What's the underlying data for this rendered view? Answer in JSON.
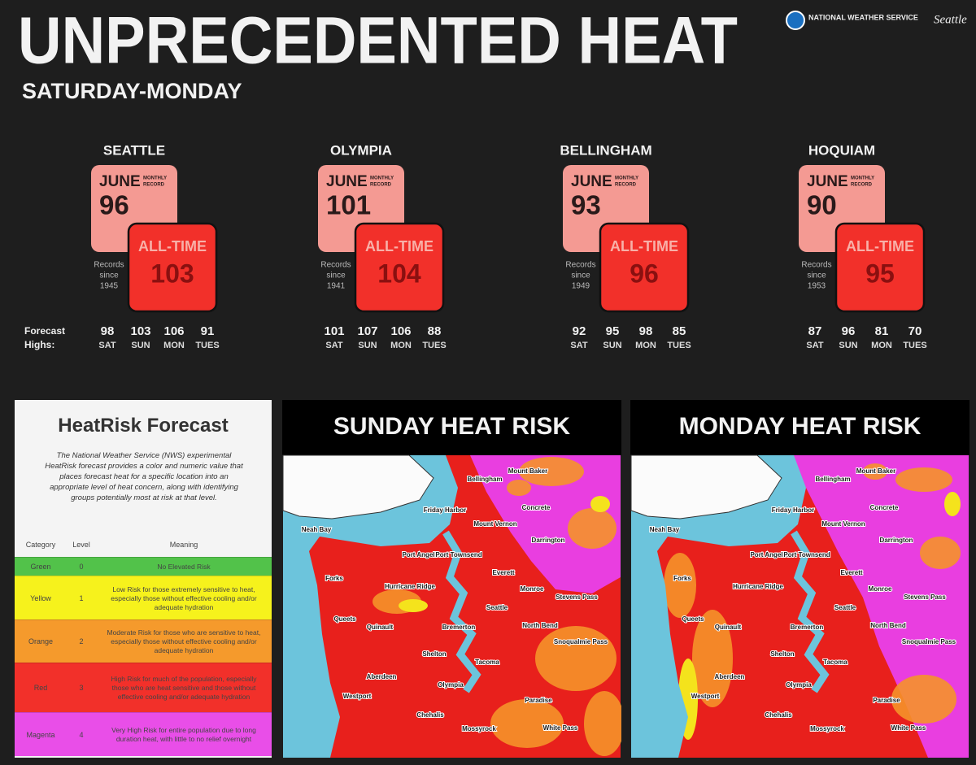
{
  "header": {
    "title": "UNPRECEDENTED HEAT",
    "subtitle": "SATURDAY-MONDAY",
    "agency": "NATIONAL WEATHER SERVICE",
    "office": "Seattle"
  },
  "records_label": [
    "Records",
    "since"
  ],
  "forecast_label": [
    "Forecast",
    "Highs:"
  ],
  "days": [
    "SAT",
    "SUN",
    "MON",
    "TUES"
  ],
  "month": "JUNE",
  "monthly_label": [
    "MONTHLY",
    "RECORD"
  ],
  "alltime_label": "ALL-TIME",
  "cities": [
    {
      "name": "SEATTLE",
      "monthly": 96,
      "alltime": 103,
      "since": 1945,
      "forecast": [
        98,
        103,
        106,
        91
      ]
    },
    {
      "name": "OLYMPIA",
      "monthly": 101,
      "alltime": 104,
      "since": 1941,
      "forecast": [
        101,
        107,
        106,
        88
      ]
    },
    {
      "name": "BELLINGHAM",
      "monthly": 93,
      "alltime": 96,
      "since": 1949,
      "forecast": [
        92,
        95,
        98,
        85
      ]
    },
    {
      "name": "HOQUIAM",
      "monthly": 90,
      "alltime": 95,
      "since": 1953,
      "forecast": [
        87,
        96,
        81,
        70
      ]
    }
  ],
  "heatrisk": {
    "title": "HeatRisk Forecast",
    "description": "The National Weather Service (NWS) experimental HeatRisk forecast provides a color and numeric value that places forecast heat for a specific location into an appropriate level of heat concern, along with identifying groups potentially most at risk at that level.",
    "columns": [
      "Category",
      "Level",
      "Meaning"
    ],
    "rows": [
      {
        "category": "Green",
        "level": 0,
        "meaning": "No Elevated Risk",
        "color": "#52c24a"
      },
      {
        "category": "Yellow",
        "level": 1,
        "meaning": "Low Risk for those extremely sensitive to heat, especially those without effective cooling and/or adequate hydration",
        "color": "#f6f21c"
      },
      {
        "category": "Orange",
        "level": 2,
        "meaning": "Moderate Risk for those who are sensitive to heat, especially those without effective cooling and/or adequate hydration",
        "color": "#f59a2c"
      },
      {
        "category": "Red",
        "level": 3,
        "meaning": "High Risk for much of the population, especially those who are heat sensitive and those without effective cooling and/or adequate hydration",
        "color": "#f2302a"
      },
      {
        "category": "Magenta",
        "level": 4,
        "meaning": "Very High Risk for entire population due to long duration heat, with little to no relief overnight",
        "color": "#e94ee8"
      }
    ]
  },
  "maps": [
    {
      "title": "SUNDAY HEAT RISK",
      "places": [
        "Mount Baker",
        "Bellingham",
        "Concrete",
        "Friday Harbor",
        "Mount Vernon",
        "Darrington",
        "Neah Bay",
        "Port Angeles",
        "Port Townsend",
        "Everett",
        "Forks",
        "Hurricane Ridge",
        "Monroe",
        "Stevens Pass",
        "Seattle",
        "Queets",
        "Quinault",
        "Bremerton",
        "North Bend",
        "Snoqualmie Pass",
        "Shelton",
        "Tacoma",
        "Aberdeen",
        "Olympia",
        "Westport",
        "Paradise",
        "Chehalis",
        "Mossyrock",
        "White Pass"
      ]
    },
    {
      "title": "MONDAY HEAT RISK",
      "places": [
        "Mount Baker",
        "Bellingham",
        "Concrete",
        "Friday Harbor",
        "Mount Vernon",
        "Darrington",
        "Neah Bay",
        "Port Angeles",
        "Port Townsend",
        "Everett",
        "Forks",
        "Hurricane Ridge",
        "Monroe",
        "Stevens Pass",
        "Seattle",
        "Queets",
        "Quinault",
        "Bremerton",
        "North Bend",
        "Snoqualmie Pass",
        "Shelton",
        "Tacoma",
        "Aberdeen",
        "Olympia",
        "Westport",
        "Paradise",
        "Chehalis",
        "Mossyrock",
        "White Pass"
      ]
    }
  ]
}
